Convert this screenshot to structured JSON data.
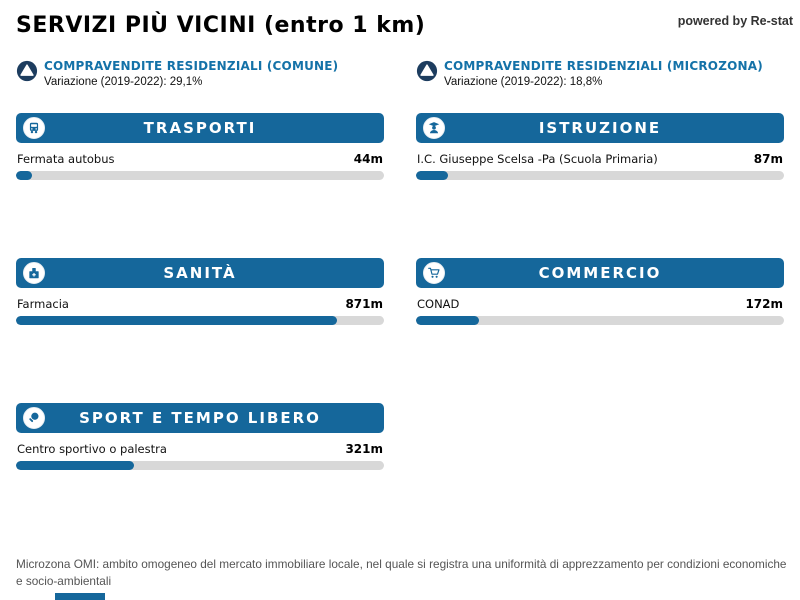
{
  "page": {
    "title": "SERVIZI PIÙ VICINI (entro 1 km)",
    "powered_by": "powered by Re-stat",
    "footer": "Microzona OMI: ambito omogeneo del mercato immobiliare locale, nel quale si registra una uniformità di apprezzamento per condizioni economiche e socio-ambientali"
  },
  "colors": {
    "accent_blue": "#15679B",
    "text_blue": "#1472A8",
    "badge_navy": "#1D3D5F",
    "track_gray": "#D8D8D8"
  },
  "stats": [
    {
      "icon": "arrow-up-circle-icon",
      "label": "COMPRAVENDITE RESIDENZIALI (COMUNE)",
      "variation": "Variazione (2019-2022): 29,1%"
    },
    {
      "icon": "arrow-up-circle-icon",
      "label": "COMPRAVENDITE RESIDENZIALI (MICROZONA)",
      "variation": "Variazione (2019-2022): 18,8%"
    }
  ],
  "cards": [
    {
      "icon": "bus-icon",
      "title": "TRASPORTI",
      "item": "Fermata autobus",
      "distance": "44m",
      "distance_m": 44,
      "max_m": 1000
    },
    {
      "icon": "student-icon",
      "title": "ISTRUZIONE",
      "item": "I.C. Giuseppe Scelsa -Pa (Scuola Primaria)",
      "distance": "87m",
      "distance_m": 87,
      "max_m": 1000
    },
    {
      "icon": "hospital-icon",
      "title": "SANITÀ",
      "item": "Farmacia",
      "distance": "871m",
      "distance_m": 871,
      "max_m": 1000
    },
    {
      "icon": "cart-icon",
      "title": "COMMERCIO",
      "item": "CONAD",
      "distance": "172m",
      "distance_m": 172,
      "max_m": 1000
    },
    {
      "icon": "paddle-icon",
      "title": "SPORT E TEMPO LIBERO",
      "item": "Centro sportivo o palestra",
      "distance": "321m",
      "distance_m": 321,
      "max_m": 1000
    }
  ]
}
